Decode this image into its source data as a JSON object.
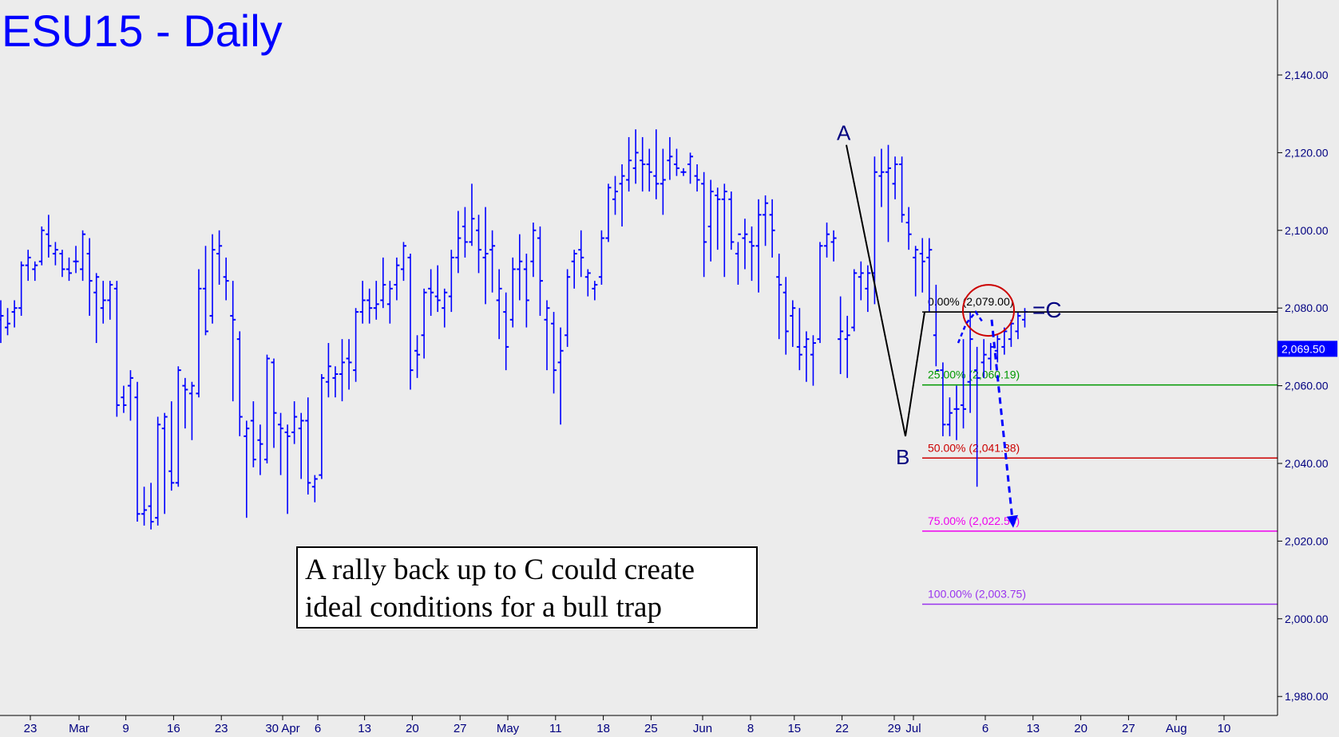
{
  "chart_data": {
    "type": "ohlc",
    "title": "ESU15 - Daily",
    "price_axis": {
      "ylim": [
        1975,
        2157
      ],
      "ticks": [
        1980,
        2000,
        2020,
        2040,
        2060,
        2080,
        2100,
        2120,
        2140
      ],
      "tick_labels": [
        "1,980.00",
        "2,000.00",
        "2,020.00",
        "2,040.00",
        "2,060.00",
        "2,080.00",
        "2,100.00",
        "2,120.00",
        "2,140.00"
      ],
      "position": "right"
    },
    "time_axis": {
      "tick_labels": [
        "23",
        "Mar",
        "9",
        "16",
        "23",
        "30 Apr",
        "6",
        "13",
        "20",
        "27",
        "May",
        "11",
        "18",
        "25",
        "Jun",
        "8",
        "15",
        "22",
        "29",
        "Jul",
        "6",
        "13",
        "20",
        "27",
        "Aug",
        "10"
      ]
    },
    "last_price": {
      "value": 2069.5,
      "label": "2,069.50"
    },
    "bars": [
      {
        "h": 2082,
        "l": 2071,
        "o": 2077,
        "c": 2078
      },
      {
        "h": 2080,
        "l": 2073,
        "o": 2075,
        "c": 2076
      },
      {
        "h": 2082,
        "l": 2075,
        "o": 2079,
        "c": 2080
      },
      {
        "h": 2092,
        "l": 2078,
        "o": 2080,
        "c": 2091
      },
      {
        "h": 2095,
        "l": 2087,
        "o": 2091,
        "c": 2093
      },
      {
        "h": 2092,
        "l": 2087,
        "o": 2090,
        "c": 2091
      },
      {
        "h": 2101,
        "l": 2091,
        "o": 2092,
        "c": 2100
      },
      {
        "h": 2104,
        "l": 2093,
        "o": 2099,
        "c": 2096
      },
      {
        "h": 2097,
        "l": 2091,
        "o": 2094,
        "c": 2095
      },
      {
        "h": 2095,
        "l": 2088,
        "o": 2094,
        "c": 2090
      },
      {
        "h": 2093,
        "l": 2087,
        "o": 2090,
        "c": 2089
      },
      {
        "h": 2096,
        "l": 2089,
        "o": 2092,
        "c": 2092
      },
      {
        "h": 2100,
        "l": 2087,
        "o": 2090,
        "c": 2099
      },
      {
        "h": 2098,
        "l": 2078,
        "o": 2094,
        "c": 2087
      },
      {
        "h": 2089,
        "l": 2071,
        "o": 2084,
        "c": 2088
      },
      {
        "h": 2087,
        "l": 2076,
        "o": 2080,
        "c": 2082
      },
      {
        "h": 2087,
        "l": 2077,
        "o": 2082,
        "c": 2086
      },
      {
        "h": 2087,
        "l": 2052,
        "o": 2085,
        "c": 2055
      },
      {
        "h": 2060,
        "l": 2053,
        "o": 2057,
        "c": 2055
      },
      {
        "h": 2064,
        "l": 2051,
        "o": 2060,
        "c": 2062
      },
      {
        "h": 2061,
        "l": 2025,
        "o": 2057,
        "c": 2027
      },
      {
        "h": 2034,
        "l": 2024,
        "o": 2027,
        "c": 2028
      },
      {
        "h": 2035,
        "l": 2023,
        "o": 2029,
        "c": 2025
      },
      {
        "h": 2052,
        "l": 2024,
        "o": 2026,
        "c": 2050
      },
      {
        "h": 2053,
        "l": 2027,
        "o": 2049,
        "c": 2052
      },
      {
        "h": 2056,
        "l": 2033,
        "o": 2038,
        "c": 2035
      },
      {
        "h": 2065,
        "l": 2034,
        "o": 2035,
        "c": 2064
      },
      {
        "h": 2062,
        "l": 2049,
        "o": 2060,
        "c": 2059
      },
      {
        "h": 2061,
        "l": 2046,
        "o": 2058,
        "c": 2060
      },
      {
        "h": 2090,
        "l": 2057,
        "o": 2058,
        "c": 2085
      },
      {
        "h": 2096,
        "l": 2073,
        "o": 2085,
        "c": 2074
      },
      {
        "h": 2099,
        "l": 2076,
        "o": 2078,
        "c": 2095
      },
      {
        "h": 2100,
        "l": 2086,
        "o": 2094,
        "c": 2096
      },
      {
        "h": 2093,
        "l": 2082,
        "o": 2088,
        "c": 2087
      },
      {
        "h": 2087,
        "l": 2056,
        "o": 2078,
        "c": 2077
      },
      {
        "h": 2074,
        "l": 2047,
        "o": 2072,
        "c": 2052
      },
      {
        "h": 2051,
        "l": 2026,
        "o": 2047,
        "c": 2049
      },
      {
        "h": 2056,
        "l": 2039,
        "o": 2051,
        "c": 2041
      },
      {
        "h": 2050,
        "l": 2037,
        "o": 2046,
        "c": 2045
      },
      {
        "h": 2068,
        "l": 2040,
        "o": 2041,
        "c": 2067
      },
      {
        "h": 2067,
        "l": 2044,
        "o": 2066,
        "c": 2053
      },
      {
        "h": 2053,
        "l": 2037,
        "o": 2050,
        "c": 2049
      },
      {
        "h": 2050,
        "l": 2027,
        "o": 2048,
        "c": 2047
      },
      {
        "h": 2056,
        "l": 2045,
        "o": 2048,
        "c": 2052
      },
      {
        "h": 2053,
        "l": 2036,
        "o": 2049,
        "c": 2051
      },
      {
        "h": 2057,
        "l": 2032,
        "o": 2051,
        "c": 2035
      },
      {
        "h": 2037,
        "l": 2030,
        "o": 2034,
        "c": 2036
      },
      {
        "h": 2063,
        "l": 2036,
        "o": 2037,
        "c": 2062
      },
      {
        "h": 2071,
        "l": 2057,
        "o": 2061,
        "c": 2065
      },
      {
        "h": 2065,
        "l": 2057,
        "o": 2062,
        "c": 2063
      },
      {
        "h": 2072,
        "l": 2056,
        "o": 2063,
        "c": 2066
      },
      {
        "h": 2072,
        "l": 2059,
        "o": 2067,
        "c": 2066
      },
      {
        "h": 2080,
        "l": 2061,
        "o": 2064,
        "c": 2079
      },
      {
        "h": 2087,
        "l": 2076,
        "o": 2079,
        "c": 2082
      },
      {
        "h": 2085,
        "l": 2076,
        "o": 2082,
        "c": 2080
      },
      {
        "h": 2087,
        "l": 2077,
        "o": 2080,
        "c": 2081
      },
      {
        "h": 2093,
        "l": 2080,
        "o": 2082,
        "c": 2086
      },
      {
        "h": 2087,
        "l": 2076,
        "o": 2081,
        "c": 2085
      },
      {
        "h": 2093,
        "l": 2082,
        "o": 2086,
        "c": 2091
      },
      {
        "h": 2097,
        "l": 2087,
        "o": 2090,
        "c": 2096
      },
      {
        "h": 2094,
        "l": 2059,
        "o": 2093,
        "c": 2064
      },
      {
        "h": 2073,
        "l": 2062,
        "o": 2069,
        "c": 2068
      },
      {
        "h": 2085,
        "l": 2067,
        "o": 2073,
        "c": 2084
      },
      {
        "h": 2090,
        "l": 2078,
        "o": 2085,
        "c": 2084
      },
      {
        "h": 2091,
        "l": 2079,
        "o": 2083,
        "c": 2082
      },
      {
        "h": 2085,
        "l": 2075,
        "o": 2080,
        "c": 2084
      },
      {
        "h": 2095,
        "l": 2079,
        "o": 2083,
        "c": 2093
      },
      {
        "h": 2105,
        "l": 2089,
        "o": 2093,
        "c": 2098
      },
      {
        "h": 2106,
        "l": 2093,
        "o": 2101,
        "c": 2097
      },
      {
        "h": 2112,
        "l": 2096,
        "o": 2097,
        "c": 2103
      },
      {
        "h": 2104,
        "l": 2089,
        "o": 2100,
        "c": 2095
      },
      {
        "h": 2106,
        "l": 2081,
        "o": 2093,
        "c": 2094
      },
      {
        "h": 2100,
        "l": 2084,
        "o": 2095,
        "c": 2096
      },
      {
        "h": 2090,
        "l": 2072,
        "o": 2082,
        "c": 2085
      },
      {
        "h": 2084,
        "l": 2064,
        "o": 2079,
        "c": 2070
      },
      {
        "h": 2093,
        "l": 2075,
        "o": 2077,
        "c": 2090
      },
      {
        "h": 2099,
        "l": 2082,
        "o": 2090,
        "c": 2092
      },
      {
        "h": 2094,
        "l": 2075,
        "o": 2090,
        "c": 2082
      },
      {
        "h": 2102,
        "l": 2088,
        "o": 2092,
        "c": 2100
      },
      {
        "h": 2101,
        "l": 2078,
        "o": 2098,
        "c": 2087
      },
      {
        "h": 2082,
        "l": 2064,
        "o": 2077,
        "c": 2080
      },
      {
        "h": 2079,
        "l": 2058,
        "o": 2076,
        "c": 2064
      },
      {
        "h": 2075,
        "l": 2050,
        "o": 2066,
        "c": 2069
      },
      {
        "h": 2090,
        "l": 2070,
        "o": 2073,
        "c": 2088
      },
      {
        "h": 2095,
        "l": 2085,
        "o": 2092,
        "c": 2094
      },
      {
        "h": 2100,
        "l": 2088,
        "o": 2095,
        "c": 2093
      },
      {
        "h": 2090,
        "l": 2083,
        "o": 2088,
        "c": 2089
      },
      {
        "h": 2087,
        "l": 2082,
        "o": 2085,
        "c": 2086
      },
      {
        "h": 2100,
        "l": 2086,
        "o": 2088,
        "c": 2098
      },
      {
        "h": 2112,
        "l": 2097,
        "o": 2098,
        "c": 2111
      },
      {
        "h": 2114,
        "l": 2104,
        "o": 2108,
        "c": 2110
      },
      {
        "h": 2117,
        "l": 2101,
        "o": 2112,
        "c": 2114
      },
      {
        "h": 2124,
        "l": 2110,
        "o": 2113,
        "c": 2118
      },
      {
        "h": 2126,
        "l": 2112,
        "o": 2116,
        "c": 2120
      },
      {
        "h": 2124,
        "l": 2110,
        "o": 2118,
        "c": 2117
      },
      {
        "h": 2121,
        "l": 2110,
        "o": 2117,
        "c": 2115
      },
      {
        "h": 2126,
        "l": 2108,
        "o": 2114,
        "c": 2112
      },
      {
        "h": 2121,
        "l": 2104,
        "o": 2112,
        "c": 2113
      },
      {
        "h": 2124,
        "l": 2113,
        "o": 2118,
        "c": 2119
      },
      {
        "h": 2121,
        "l": 2114,
        "o": 2117,
        "c": 2116
      },
      {
        "h": 2116,
        "l": 2114,
        "o": 2115,
        "c": 2115
      },
      {
        "h": 2120,
        "l": 2112,
        "o": 2117,
        "c": 2119
      },
      {
        "h": 2117,
        "l": 2110,
        "o": 2114,
        "c": 2113
      },
      {
        "h": 2115,
        "l": 2088,
        "o": 2112,
        "c": 2097
      },
      {
        "h": 2113,
        "l": 2092,
        "o": 2101,
        "c": 2110
      },
      {
        "h": 2111,
        "l": 2095,
        "o": 2109,
        "c": 2108
      },
      {
        "h": 2112,
        "l": 2088,
        "o": 2108,
        "c": 2110
      },
      {
        "h": 2110,
        "l": 2095,
        "o": 2108,
        "c": 2097
      },
      {
        "h": 2097,
        "l": 2086,
        "o": 2094,
        "c": 2099
      },
      {
        "h": 2103,
        "l": 2090,
        "o": 2098,
        "c": 2099
      },
      {
        "h": 2101,
        "l": 2087,
        "o": 2097,
        "c": 2096
      },
      {
        "h": 2108,
        "l": 2084,
        "o": 2096,
        "c": 2104
      },
      {
        "h": 2109,
        "l": 2096,
        "o": 2104,
        "c": 2107
      },
      {
        "h": 2108,
        "l": 2093,
        "o": 2104,
        "c": 2100
      },
      {
        "h": 2094,
        "l": 2072,
        "o": 2088,
        "c": 2086
      },
      {
        "h": 2088,
        "l": 2068,
        "o": 2084,
        "c": 2074
      },
      {
        "h": 2082,
        "l": 2070,
        "o": 2078,
        "c": 2080
      },
      {
        "h": 2080,
        "l": 2064,
        "o": 2070,
        "c": 2068
      },
      {
        "h": 2074,
        "l": 2061,
        "o": 2070,
        "c": 2072
      },
      {
        "h": 2073,
        "l": 2060,
        "o": 2068,
        "c": 2071
      },
      {
        "h": 2097,
        "l": 2071,
        "o": 2072,
        "c": 2096
      },
      {
        "h": 2102,
        "l": 2093,
        "o": 2096,
        "c": 2099
      },
      {
        "h": 2100,
        "l": 2092,
        "o": 2097,
        "c": 2098
      },
      {
        "h": 2083,
        "l": 2063,
        "o": 2072,
        "c": 2074
      },
      {
        "h": 2078,
        "l": 2062,
        "o": 2072,
        "c": 2073
      },
      {
        "h": 2090,
        "l": 2074,
        "o": 2075,
        "c": 2089
      },
      {
        "h": 2092,
        "l": 2082,
        "o": 2088,
        "c": 2089
      },
      {
        "h": 2091,
        "l": 2079,
        "o": 2085,
        "c": 2089
      },
      {
        "h": 2119,
        "l": 2081,
        "o": 2089,
        "c": 2115
      },
      {
        "h": 2121,
        "l": 2106,
        "o": 2114,
        "c": 2115
      },
      {
        "h": 2122,
        "l": 2097,
        "o": 2115,
        "c": 2116
      },
      {
        "h": 2119,
        "l": 2108,
        "o": 2112,
        "c": 2117
      },
      {
        "h": 2119,
        "l": 2102,
        "o": 2117,
        "c": 2104
      },
      {
        "h": 2106,
        "l": 2095,
        "o": 2102,
        "c": 2099
      },
      {
        "h": 2096,
        "l": 2083,
        "o": 2093,
        "c": 2095
      },
      {
        "h": 2098,
        "l": 2084,
        "o": 2094,
        "c": 2092
      },
      {
        "h": 2098,
        "l": 2079,
        "o": 2093,
        "c": 2095
      },
      {
        "h": 2086,
        "l": 2065,
        "o": 2073,
        "c": 2064
      },
      {
        "h": 2066,
        "l": 2047,
        "o": 2064,
        "c": 2050
      },
      {
        "h": 2057,
        "l": 2047,
        "o": 2050,
        "c": 2053
      },
      {
        "h": 2060,
        "l": 2046,
        "o": 2054,
        "c": 2054
      },
      {
        "h": 2072,
        "l": 2049,
        "o": 2055,
        "c": 2054
      },
      {
        "h": 2079,
        "l": 2053,
        "o": 2061,
        "c": 2072
      },
      {
        "h": 2070,
        "l": 2034,
        "o": 2064,
        "c": 2062
      },
      {
        "h": 2072,
        "l": 2062,
        "o": 2066,
        "c": 2068
      },
      {
        "h": 2071,
        "l": 2064,
        "o": 2067,
        "c": 2070
      },
      {
        "h": 2073,
        "l": 2066,
        "o": 2069,
        "c": 2072
      },
      {
        "h": 2075,
        "l": 2068,
        "o": 2070,
        "c": 2074
      },
      {
        "h": 2077,
        "l": 2070,
        "o": 2072,
        "c": 2076
      },
      {
        "h": 2079,
        "l": 2072,
        "o": 2074,
        "c": 2078
      },
      {
        "h": 2080,
        "l": 2075,
        "o": 2077,
        "c": 2079
      }
    ],
    "abc_pattern": {
      "A": {
        "label": "A",
        "price": 2122
      },
      "B": {
        "label": "B",
        "price": 2047
      },
      "C": {
        "label": "=C",
        "price": 2079
      }
    },
    "retracements": [
      {
        "label": "0.00% (2,079.00)",
        "value": 2079.0,
        "color": "#000000"
      },
      {
        "label": "25.00% (2,060.19)",
        "value": 2060.19,
        "color": "#009900"
      },
      {
        "label": "50.00% (2,041.38)",
        "value": 2041.38,
        "color": "#cc0000"
      },
      {
        "label": "75.00% (2,022.56)",
        "value": 2022.56,
        "color": "#ee00ee"
      },
      {
        "label": "100.00% (2,003.75)",
        "value": 2003.75,
        "color": "#9933ee"
      }
    ],
    "projection_arrow": {
      "from": 2077,
      "to": 2023
    },
    "colors": {
      "bars": "#0000ff",
      "title": "#0000ff",
      "abc_labels": "#000080",
      "axis_text": "#000080",
      "circle": "#cc0000",
      "last_price_bg": "#0000ff",
      "background": "#ececec"
    }
  },
  "annotation": {
    "line1": "A rally back up to C could create",
    "line2": "ideal conditions for a bull trap"
  }
}
